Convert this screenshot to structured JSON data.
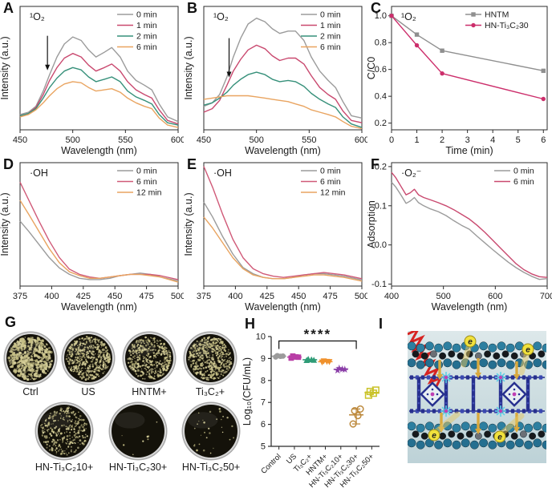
{
  "figure": {
    "background": "#ffffff"
  },
  "chart_data": [
    {
      "id": "A",
      "letter": "A",
      "type": "line",
      "annotation": "¹O₂",
      "xlabel": "Wavelength (nm)",
      "ylabel": "Intensity (a.u.)",
      "xlim": [
        450,
        600
      ],
      "xticks": [
        450,
        500,
        550,
        600
      ],
      "ylim": [
        0,
        1.05
      ],
      "legend_position": "top-right",
      "arrow": {
        "x": 476,
        "from": 0.8,
        "to": 0.52
      },
      "x": [
        450,
        458,
        465,
        472,
        478,
        485,
        492,
        500,
        508,
        515,
        522,
        530,
        537,
        545,
        552,
        560,
        568,
        575,
        582,
        590,
        600
      ],
      "series": [
        {
          "name": "0 min",
          "color": "#9b9b9b",
          "values": [
            0.13,
            0.15,
            0.2,
            0.33,
            0.47,
            0.62,
            0.73,
            0.79,
            0.76,
            0.68,
            0.62,
            0.66,
            0.7,
            0.62,
            0.5,
            0.42,
            0.38,
            0.34,
            0.22,
            0.11,
            0.07
          ]
        },
        {
          "name": "1 min",
          "color": "#c9496f",
          "values": [
            0.12,
            0.14,
            0.19,
            0.3,
            0.42,
            0.53,
            0.61,
            0.65,
            0.62,
            0.55,
            0.5,
            0.53,
            0.56,
            0.5,
            0.41,
            0.34,
            0.3,
            0.27,
            0.17,
            0.08,
            0.05
          ]
        },
        {
          "name": "2 min",
          "color": "#36907a",
          "values": [
            0.12,
            0.14,
            0.18,
            0.27,
            0.36,
            0.44,
            0.5,
            0.53,
            0.51,
            0.45,
            0.41,
            0.43,
            0.45,
            0.41,
            0.33,
            0.28,
            0.25,
            0.22,
            0.13,
            0.06,
            0.04
          ]
        },
        {
          "name": "6 min",
          "color": "#e9a460",
          "values": [
            0.11,
            0.13,
            0.17,
            0.23,
            0.29,
            0.35,
            0.39,
            0.41,
            0.4,
            0.36,
            0.33,
            0.34,
            0.35,
            0.32,
            0.27,
            0.23,
            0.2,
            0.18,
            0.1,
            0.04,
            0.02
          ]
        }
      ]
    },
    {
      "id": "B",
      "letter": "B",
      "type": "line",
      "annotation": "¹O₂",
      "xlabel": "Wavelength (nm)",
      "ylabel": "Intensity (a.u.)",
      "xlim": [
        450,
        600
      ],
      "xticks": [
        450,
        500,
        550,
        600
      ],
      "ylim": [
        0,
        1.05
      ],
      "legend_position": "top-right",
      "arrow": {
        "x": 474,
        "from": 0.78,
        "to": 0.46
      },
      "x": [
        450,
        458,
        465,
        472,
        478,
        485,
        492,
        500,
        508,
        515,
        522,
        530,
        537,
        545,
        552,
        560,
        568,
        575,
        582,
        590,
        600
      ],
      "series": [
        {
          "name": "0 min",
          "color": "#9b9b9b",
          "values": [
            0.2,
            0.23,
            0.3,
            0.45,
            0.62,
            0.78,
            0.9,
            0.95,
            0.92,
            0.86,
            0.82,
            0.84,
            0.84,
            0.76,
            0.62,
            0.5,
            0.42,
            0.36,
            0.24,
            0.12,
            0.1
          ]
        },
        {
          "name": "1 min",
          "color": "#c9496f",
          "values": [
            0.15,
            0.18,
            0.25,
            0.38,
            0.5,
            0.6,
            0.68,
            0.72,
            0.69,
            0.63,
            0.59,
            0.61,
            0.61,
            0.56,
            0.46,
            0.36,
            0.3,
            0.26,
            0.16,
            0.08,
            0.06
          ]
        },
        {
          "name": "2 min",
          "color": "#36907a",
          "values": [
            0.21,
            0.23,
            0.27,
            0.32,
            0.38,
            0.43,
            0.47,
            0.49,
            0.47,
            0.43,
            0.41,
            0.42,
            0.41,
            0.37,
            0.31,
            0.26,
            0.22,
            0.19,
            0.11,
            0.05,
            0.02
          ]
        },
        {
          "name": "6 min",
          "color": "#e9a460",
          "values": [
            0.26,
            0.27,
            0.28,
            0.29,
            0.29,
            0.29,
            0.29,
            0.28,
            0.27,
            0.26,
            0.25,
            0.24,
            0.22,
            0.2,
            0.17,
            0.15,
            0.13,
            0.11,
            0.07,
            0.03,
            0.01
          ]
        }
      ]
    },
    {
      "id": "C",
      "letter": "C",
      "type": "line",
      "annotation": "¹O₂",
      "xlabel": "Time (min)",
      "ylabel": "C/C0",
      "xlim": [
        0,
        6.15
      ],
      "xticks": [
        0,
        1,
        2,
        3,
        4,
        5,
        6
      ],
      "ylim": [
        0.15,
        1.07
      ],
      "yticks": [
        "0.2",
        "0.4",
        "0.6",
        "0.8",
        "1.0"
      ],
      "legend_position": "top-right",
      "x": [
        0,
        1,
        2,
        6
      ],
      "series": [
        {
          "name": "HNTM",
          "color": "#8f8f8f",
          "marker": "square",
          "values": [
            1.0,
            0.86,
            0.74,
            0.59
          ]
        },
        {
          "name": "HN-Ti₃C₂30",
          "color": "#cc2e6b",
          "marker": "circle",
          "values": [
            1.0,
            0.78,
            0.57,
            0.38
          ]
        }
      ]
    },
    {
      "id": "D",
      "letter": "D",
      "type": "line",
      "annotation": "·OH",
      "xlabel": "Wavelength (nm)",
      "ylabel": "Intensity (a.u.)",
      "xlim": [
        375,
        500
      ],
      "xticks": [
        375,
        400,
        425,
        450,
        475,
        500
      ],
      "ylim": [
        0,
        0.95
      ],
      "legend_position": "top-right",
      "x": [
        375,
        382,
        390,
        398,
        406,
        414,
        422,
        430,
        438,
        446,
        454,
        462,
        470,
        478,
        486,
        500
      ],
      "series": [
        {
          "name": "0 min",
          "color": "#9b9b9b",
          "values": [
            0.5,
            0.42,
            0.32,
            0.22,
            0.14,
            0.09,
            0.06,
            0.05,
            0.05,
            0.06,
            0.08,
            0.09,
            0.1,
            0.09,
            0.07,
            0.04
          ]
        },
        {
          "name": "6 min",
          "color": "#d05a78",
          "values": [
            0.8,
            0.66,
            0.5,
            0.35,
            0.22,
            0.13,
            0.09,
            0.07,
            0.06,
            0.07,
            0.08,
            0.09,
            0.09,
            0.09,
            0.08,
            0.05
          ]
        },
        {
          "name": "12 min",
          "color": "#e9a460",
          "values": [
            0.66,
            0.55,
            0.42,
            0.29,
            0.18,
            0.11,
            0.08,
            0.06,
            0.06,
            0.07,
            0.08,
            0.09,
            0.09,
            0.08,
            0.07,
            0.03
          ]
        }
      ]
    },
    {
      "id": "E",
      "letter": "E",
      "type": "line",
      "annotation": "·OH",
      "xlabel": "Wavelength (nm)",
      "ylabel": "Intensity (a.u.)",
      "xlim": [
        375,
        500
      ],
      "xticks": [
        375,
        400,
        425,
        450,
        475,
        500
      ],
      "ylim": [
        0,
        1.0
      ],
      "legend_position": "top-right",
      "x": [
        375,
        382,
        390,
        398,
        406,
        414,
        422,
        430,
        438,
        446,
        454,
        462,
        470,
        478,
        486,
        500
      ],
      "series": [
        {
          "name": "0 min",
          "color": "#9b9b9b",
          "values": [
            0.68,
            0.56,
            0.4,
            0.26,
            0.15,
            0.1,
            0.07,
            0.06,
            0.06,
            0.07,
            0.09,
            0.1,
            0.1,
            0.09,
            0.08,
            0.05
          ]
        },
        {
          "name": "6 min",
          "color": "#d05a78",
          "values": [
            0.97,
            0.8,
            0.58,
            0.38,
            0.23,
            0.14,
            0.1,
            0.08,
            0.07,
            0.08,
            0.09,
            0.1,
            0.11,
            0.1,
            0.09,
            0.06
          ]
        },
        {
          "name": "12 min",
          "color": "#e9a460",
          "values": [
            0.56,
            0.47,
            0.35,
            0.23,
            0.14,
            0.09,
            0.07,
            0.06,
            0.06,
            0.07,
            0.08,
            0.09,
            0.09,
            0.08,
            0.07,
            0.04
          ]
        }
      ]
    },
    {
      "id": "F",
      "letter": "F",
      "type": "line",
      "annotation": "·O₂⁻",
      "xlabel": "Wavelength (nm)",
      "ylabel": "Adsorption",
      "xlim": [
        400,
        700
      ],
      "xticks": [
        400,
        500,
        600,
        700
      ],
      "ylim": [
        -0.105,
        0.21
      ],
      "yticks": [
        "-0.1",
        "0.0",
        "0.1",
        "0.2"
      ],
      "legend_position": "top-right",
      "x": [
        400,
        408,
        418,
        428,
        436,
        444,
        452,
        462,
        475,
        490,
        505,
        520,
        535,
        550,
        565,
        580,
        595,
        610,
        625,
        640,
        655,
        670,
        685,
        700
      ],
      "series": [
        {
          "name": "0 min",
          "color": "#9b9b9b",
          "values": [
            0.16,
            0.148,
            0.128,
            0.106,
            0.112,
            0.121,
            0.108,
            0.1,
            0.092,
            0.085,
            0.075,
            0.062,
            0.05,
            0.04,
            0.022,
            0.005,
            -0.012,
            -0.028,
            -0.044,
            -0.058,
            -0.07,
            -0.08,
            -0.088,
            -0.086
          ]
        },
        {
          "name": "6 min",
          "color": "#c9496f",
          "values": [
            0.185,
            0.172,
            0.15,
            0.128,
            0.133,
            0.142,
            0.128,
            0.121,
            0.115,
            0.108,
            0.1,
            0.09,
            0.078,
            0.066,
            0.05,
            0.032,
            0.012,
            -0.008,
            -0.028,
            -0.048,
            -0.063,
            -0.074,
            -0.081,
            -0.083
          ]
        }
      ]
    },
    {
      "id": "H",
      "letter": "H",
      "type": "scatter",
      "ylabel": "Log₁₀(CFU/mL)",
      "ylim": [
        5,
        10
      ],
      "yticks": [
        5,
        6,
        7,
        8,
        9,
        10
      ],
      "categories": [
        "Control",
        "US",
        "Ti₃C₂+",
        "HNTM+",
        "HN-Ti₃C₂10+",
        "HN-Ti₃C₂30+",
        "HN-Ti₃C₂50+"
      ],
      "groups": [
        {
          "name": "Control",
          "color": "#9b9b9b",
          "marker": "circle",
          "values": [
            9.07,
            9.1,
            9.13,
            9.11
          ]
        },
        {
          "name": "US",
          "color": "#b93ea6",
          "marker": "square",
          "values": [
            9.02,
            9.07,
            9.11,
            9.06
          ]
        },
        {
          "name": "Ti₃C₂+",
          "color": "#2e9c77",
          "marker": "triangle",
          "values": [
            8.92,
            8.95,
            8.97,
            8.93
          ]
        },
        {
          "name": "HNTM+",
          "color": "#f0912c",
          "marker": "triangle-down",
          "values": [
            8.83,
            8.86,
            8.88,
            8.85
          ]
        },
        {
          "name": "HN-Ti₃C₂10+",
          "color": "#8b3fa8",
          "marker": "star",
          "values": [
            8.46,
            8.51,
            8.55,
            8.5
          ]
        },
        {
          "name": "HN-Ti₃C₂30+",
          "color": "#bd8a3e",
          "marker": "circle-open",
          "values": [
            6.02,
            6.4,
            6.62,
            6.7
          ],
          "whiskers": true
        },
        {
          "name": "HN-Ti₃C₂50+",
          "color": "#c9c227",
          "marker": "square-open",
          "values": [
            7.33,
            7.42,
            7.5,
            7.56
          ]
        }
      ],
      "significance": {
        "label": "****",
        "from": 0,
        "to": 5,
        "bar_y": 9.8
      }
    }
  ],
  "plates": {
    "letter": "G",
    "items": [
      {
        "label": "Ctrl",
        "colonies": 600
      },
      {
        "label": "US",
        "colonies": 500
      },
      {
        "label": "HNTM+",
        "colonies": 420
      },
      {
        "label": "Ti₃C₂+",
        "colonies": 500
      },
      {
        "label": "HN-Ti₃C₂10+",
        "colonies": 300
      },
      {
        "label": "HN-Ti₃C₂30+",
        "colonies": 8
      },
      {
        "label": "HN-Ti₃C₂50+",
        "colonies": 30
      }
    ]
  },
  "schematic": {
    "letter": "I",
    "electron_label": "e",
    "colors": {
      "background_top": "#dde8ea",
      "background_bottom": "#bdd2d7",
      "wave": "#d62422",
      "sphere": "#2d7fa0",
      "sphere_dark": "#17191c",
      "framework": "#27308f",
      "accent_cyan": "#5fd0e6",
      "accent_magenta": "#c03fb3",
      "arrow_gold": "#d9a93e",
      "electron_yellow": "#f0e13c"
    }
  }
}
